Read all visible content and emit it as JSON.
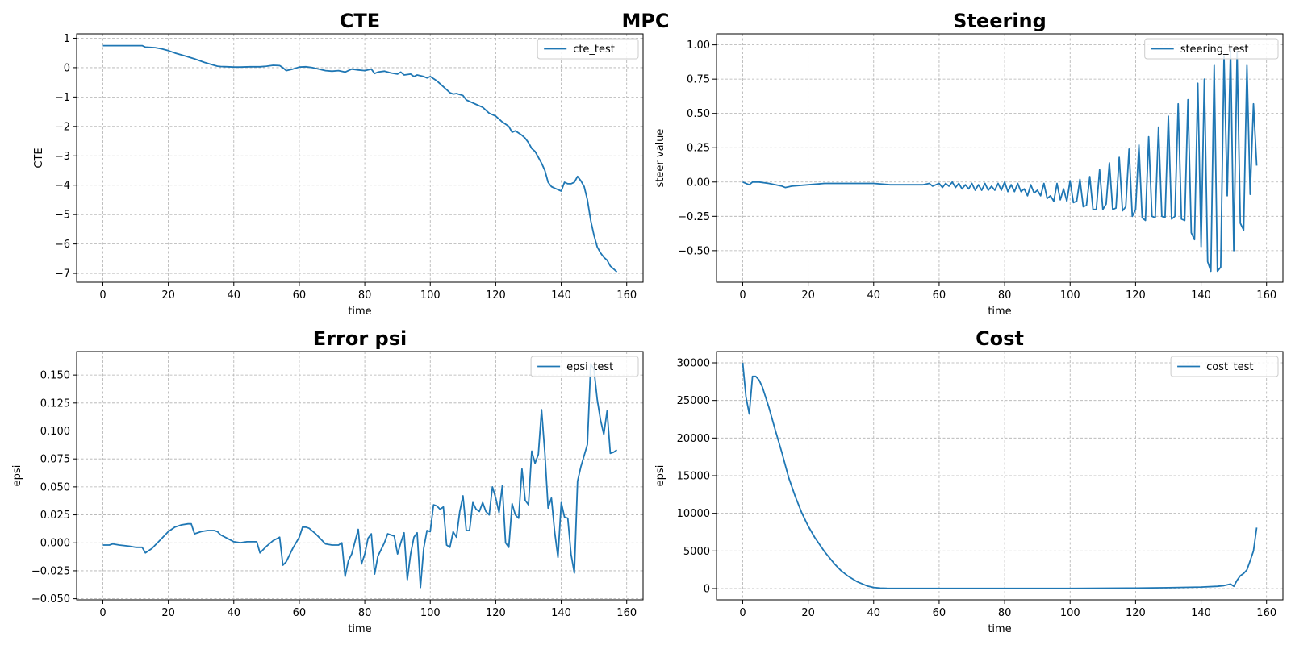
{
  "suptitle": "MPC",
  "chart_data": [
    {
      "type": "line",
      "title": "CTE",
      "xlabel": "time",
      "ylabel": "CTE",
      "xlim": [
        -8,
        165
      ],
      "ylim": [
        -7.3,
        1.15
      ],
      "xticks": [
        0,
        20,
        40,
        60,
        80,
        100,
        120,
        140,
        160
      ],
      "yticks": [
        -7,
        -6,
        -5,
        -4,
        -3,
        -2,
        -1,
        0,
        1
      ],
      "ytick_labels": [
        "−7",
        "−6",
        "−5",
        "−4",
        "−3",
        "−2",
        "−1",
        "0",
        "1"
      ],
      "grid": true,
      "legend": "upper right",
      "color": "#1f77b4",
      "series": [
        {
          "name": "cte_test",
          "x": [
            0,
            5,
            10,
            12,
            13,
            16,
            18,
            20,
            22,
            25,
            28,
            31,
            34,
            35,
            36,
            38,
            40,
            42,
            45,
            48,
            50,
            52,
            54,
            55,
            56,
            58,
            60,
            62,
            64,
            66,
            68,
            70,
            72,
            74,
            75,
            76,
            78,
            80,
            82,
            83,
            84,
            86,
            88,
            90,
            91,
            92,
            94,
            95,
            96,
            98,
            99,
            100,
            102,
            104,
            106,
            107,
            108,
            110,
            111,
            112,
            114,
            116,
            118,
            120,
            121,
            122,
            124,
            125,
            126,
            128,
            129,
            130,
            131,
            132,
            133,
            134,
            135,
            136,
            137,
            138,
            139,
            140,
            141,
            142,
            143,
            144,
            145,
            146,
            147,
            148,
            149,
            150,
            151,
            152,
            153,
            154,
            155,
            156,
            157
          ],
          "y": [
            0.75,
            0.75,
            0.75,
            0.75,
            0.7,
            0.68,
            0.64,
            0.58,
            0.5,
            0.4,
            0.3,
            0.18,
            0.08,
            0.05,
            0.04,
            0.03,
            0.02,
            0.02,
            0.03,
            0.03,
            0.05,
            0.08,
            0.07,
            0.0,
            -0.1,
            -0.05,
            0.02,
            0.03,
            0.0,
            -0.05,
            -0.1,
            -0.12,
            -0.1,
            -0.15,
            -0.1,
            -0.05,
            -0.08,
            -0.1,
            -0.05,
            -0.2,
            -0.15,
            -0.12,
            -0.18,
            -0.22,
            -0.15,
            -0.25,
            -0.22,
            -0.3,
            -0.25,
            -0.3,
            -0.35,
            -0.3,
            -0.45,
            -0.65,
            -0.85,
            -0.9,
            -0.88,
            -0.95,
            -1.1,
            -1.15,
            -1.25,
            -1.35,
            -1.55,
            -1.65,
            -1.75,
            -1.85,
            -2.0,
            -2.2,
            -2.15,
            -2.3,
            -2.4,
            -2.55,
            -2.75,
            -2.85,
            -3.05,
            -3.25,
            -3.5,
            -3.9,
            -4.05,
            -4.1,
            -4.15,
            -4.2,
            -3.9,
            -3.95,
            -3.95,
            -3.9,
            -3.7,
            -3.85,
            -4.05,
            -4.5,
            -5.2,
            -5.7,
            -6.1,
            -6.3,
            -6.45,
            -6.55,
            -6.75,
            -6.85,
            -6.95
          ]
        }
      ]
    },
    {
      "type": "line",
      "title": "Steering",
      "xlabel": "time",
      "ylabel": "steer value",
      "xlim": [
        -8,
        165
      ],
      "ylim": [
        -0.73,
        1.08
      ],
      "xticks": [
        0,
        20,
        40,
        60,
        80,
        100,
        120,
        140,
        160
      ],
      "yticks": [
        -0.5,
        -0.25,
        0.0,
        0.25,
        0.5,
        0.75,
        1.0
      ],
      "ytick_labels": [
        "−0.50",
        "−0.25",
        "0.00",
        "0.25",
        "0.50",
        "0.75",
        "1.00"
      ],
      "grid": true,
      "legend": "upper right",
      "color": "#1f77b4",
      "series": [
        {
          "name": "steering_test",
          "x": [
            0,
            2,
            3,
            5,
            8,
            12,
            13,
            15,
            20,
            25,
            30,
            35,
            40,
            45,
            50,
            55,
            57,
            58,
            59,
            60,
            61,
            62,
            63,
            64,
            65,
            66,
            67,
            68,
            69,
            70,
            71,
            72,
            73,
            74,
            75,
            76,
            77,
            78,
            79,
            80,
            81,
            82,
            83,
            84,
            85,
            86,
            87,
            88,
            89,
            90,
            91,
            92,
            93,
            94,
            95,
            96,
            97,
            98,
            99,
            100,
            101,
            102,
            103,
            104,
            105,
            106,
            107,
            108,
            109,
            110,
            111,
            112,
            113,
            114,
            115,
            116,
            117,
            118,
            119,
            120,
            121,
            122,
            123,
            124,
            125,
            126,
            127,
            128,
            129,
            130,
            131,
            132,
            133,
            134,
            135,
            136,
            137,
            138,
            139,
            140,
            141,
            142,
            143,
            144,
            145,
            146,
            147,
            148,
            149,
            150,
            151,
            152,
            153,
            154,
            155,
            156,
            157
          ],
          "y": [
            0.0,
            -0.02,
            0.0,
            0.0,
            -0.01,
            -0.03,
            -0.04,
            -0.03,
            -0.02,
            -0.01,
            -0.01,
            -0.01,
            -0.01,
            -0.02,
            -0.02,
            -0.02,
            -0.01,
            -0.03,
            -0.02,
            -0.01,
            -0.04,
            -0.01,
            -0.03,
            0.0,
            -0.04,
            -0.01,
            -0.05,
            -0.02,
            -0.05,
            -0.01,
            -0.06,
            -0.02,
            -0.06,
            -0.01,
            -0.06,
            -0.03,
            -0.06,
            -0.01,
            -0.06,
            0.0,
            -0.07,
            -0.02,
            -0.07,
            -0.01,
            -0.07,
            -0.05,
            -0.1,
            -0.02,
            -0.08,
            -0.06,
            -0.1,
            -0.01,
            -0.12,
            -0.1,
            -0.14,
            -0.01,
            -0.13,
            -0.05,
            -0.14,
            0.01,
            -0.15,
            -0.14,
            0.02,
            -0.18,
            -0.17,
            0.04,
            -0.2,
            -0.2,
            0.09,
            -0.2,
            -0.16,
            0.14,
            -0.2,
            -0.19,
            0.18,
            -0.21,
            -0.18,
            0.24,
            -0.25,
            -0.2,
            0.27,
            -0.26,
            -0.28,
            0.33,
            -0.25,
            -0.26,
            0.4,
            -0.25,
            -0.26,
            0.48,
            -0.27,
            -0.25,
            0.57,
            -0.27,
            -0.28,
            0.6,
            -0.37,
            -0.42,
            0.72,
            -0.47,
            0.75,
            -0.58,
            -0.65,
            0.85,
            -0.65,
            -0.62,
            0.92,
            -0.1,
            0.97,
            -0.5,
            0.95,
            -0.3,
            -0.35,
            0.85,
            -0.09,
            0.57,
            0.12
          ]
        }
      ]
    },
    {
      "type": "line",
      "title": "Error psi",
      "xlabel": "time",
      "ylabel": "epsi",
      "xlim": [
        -8,
        165
      ],
      "ylim": [
        -0.051,
        0.171
      ],
      "xticks": [
        0,
        20,
        40,
        60,
        80,
        100,
        120,
        140,
        160
      ],
      "yticks": [
        -0.05,
        -0.025,
        0.0,
        0.025,
        0.05,
        0.075,
        0.1,
        0.125,
        0.15
      ],
      "ytick_labels": [
        "−0.050",
        "−0.025",
        "0.000",
        "0.025",
        "0.050",
        "0.075",
        "0.100",
        "0.125",
        "0.150"
      ],
      "grid": true,
      "legend": "upper right",
      "color": "#1f77b4",
      "series": [
        {
          "name": "epsi_test",
          "x": [
            0,
            2,
            3,
            5,
            8,
            10,
            12,
            13,
            15,
            18,
            20,
            22,
            24,
            26,
            27,
            28,
            30,
            32,
            34,
            35,
            36,
            38,
            40,
            42,
            44,
            46,
            47,
            48,
            50,
            52,
            54,
            55,
            56,
            58,
            60,
            61,
            62,
            63,
            65,
            68,
            70,
            72,
            73,
            74,
            75,
            76,
            78,
            79,
            80,
            81,
            82,
            83,
            84,
            86,
            87,
            88,
            89,
            90,
            91,
            92,
            93,
            94,
            95,
            96,
            97,
            98,
            99,
            100,
            101,
            102,
            103,
            104,
            105,
            106,
            107,
            108,
            109,
            110,
            111,
            112,
            113,
            114,
            115,
            116,
            117,
            118,
            119,
            120,
            121,
            122,
            123,
            124,
            125,
            126,
            127,
            128,
            129,
            130,
            131,
            132,
            133,
            134,
            135,
            136,
            137,
            138,
            139,
            140,
            141,
            142,
            143,
            144,
            145,
            146,
            148,
            149,
            150,
            151,
            152,
            153,
            154,
            155,
            156,
            157
          ],
          "y": [
            -0.002,
            -0.002,
            -0.001,
            -0.002,
            -0.003,
            -0.004,
            -0.004,
            -0.009,
            -0.005,
            0.004,
            0.01,
            0.014,
            0.016,
            0.017,
            0.017,
            0.008,
            0.01,
            0.011,
            0.011,
            0.01,
            0.007,
            0.004,
            0.001,
            0.0,
            0.001,
            0.001,
            0.001,
            -0.009,
            -0.003,
            0.002,
            0.005,
            -0.02,
            -0.017,
            -0.005,
            0.005,
            0.014,
            0.014,
            0.013,
            0.008,
            -0.001,
            -0.002,
            -0.002,
            0.0,
            -0.03,
            -0.016,
            -0.01,
            0.012,
            -0.019,
            -0.01,
            0.004,
            0.008,
            -0.028,
            -0.012,
            0.0,
            0.008,
            0.007,
            0.006,
            -0.01,
            0.0,
            0.009,
            -0.033,
            -0.01,
            0.005,
            0.009,
            -0.04,
            -0.005,
            0.011,
            0.01,
            0.034,
            0.033,
            0.03,
            0.032,
            -0.002,
            -0.004,
            0.01,
            0.005,
            0.028,
            0.042,
            0.011,
            0.011,
            0.036,
            0.03,
            0.028,
            0.036,
            0.028,
            0.025,
            0.05,
            0.04,
            0.027,
            0.051,
            0.0,
            -0.004,
            0.035,
            0.025,
            0.022,
            0.066,
            0.038,
            0.034,
            0.082,
            0.071,
            0.079,
            0.119,
            0.08,
            0.031,
            0.04,
            0.01,
            -0.013,
            0.036,
            0.023,
            0.022,
            -0.01,
            -0.027,
            0.055,
            0.068,
            0.088,
            0.16,
            0.155,
            0.128,
            0.11,
            0.097,
            0.118,
            0.08,
            0.081,
            0.083
          ]
        }
      ]
    },
    {
      "type": "line",
      "title": "Cost",
      "xlabel": "time",
      "ylabel": "epsi",
      "xlim": [
        -8,
        165
      ],
      "ylim": [
        -1500,
        31500
      ],
      "xticks": [
        0,
        20,
        40,
        60,
        80,
        100,
        120,
        140,
        160
      ],
      "yticks": [
        0,
        5000,
        10000,
        15000,
        20000,
        25000,
        30000
      ],
      "ytick_labels": [
        "0",
        "5000",
        "10000",
        "15000",
        "20000",
        "25000",
        "30000"
      ],
      "grid": true,
      "legend": "upper right",
      "color": "#1f77b4",
      "series": [
        {
          "name": "cost_test",
          "x": [
            0,
            1,
            2,
            3,
            4,
            5,
            6,
            8,
            10,
            12,
            14,
            16,
            18,
            20,
            22,
            25,
            28,
            30,
            32,
            35,
            38,
            40,
            42,
            44,
            46,
            50,
            60,
            80,
            100,
            120,
            130,
            140,
            145,
            147,
            149,
            150,
            151,
            152,
            153,
            154,
            155,
            156,
            157
          ],
          "y": [
            30000,
            25500,
            23200,
            28200,
            28200,
            27700,
            26800,
            24100,
            21000,
            18000,
            14800,
            12300,
            10100,
            8300,
            6800,
            4900,
            3300,
            2400,
            1700,
            900,
            350,
            150,
            60,
            30,
            20,
            20,
            20,
            20,
            20,
            60,
            120,
            200,
            300,
            400,
            600,
            300,
            1100,
            1700,
            2000,
            2500,
            3700,
            5000,
            8100
          ]
        }
      ]
    }
  ]
}
